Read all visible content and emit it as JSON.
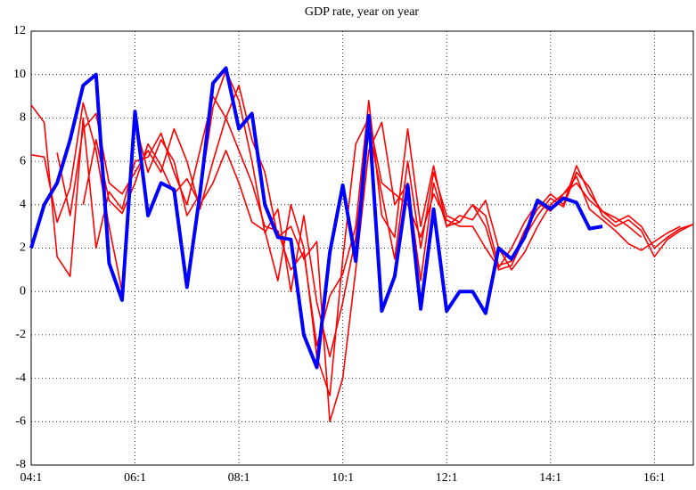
{
  "chart_data": {
    "type": "line",
    "title": "GDP rate, year on year",
    "categories": [
      "04:1",
      null,
      null,
      null,
      null,
      null,
      null,
      null,
      "06:1",
      null,
      null,
      null,
      null,
      null,
      null,
      null,
      "08:1",
      null,
      null,
      null,
      null,
      null,
      null,
      null,
      "10:1",
      null,
      null,
      null,
      null,
      null,
      null,
      null,
      "12:1",
      null,
      null,
      null,
      null,
      null,
      null,
      null,
      "14:1",
      null,
      null,
      null,
      null,
      null,
      null,
      null,
      "16:1",
      null,
      null,
      null
    ],
    "ylim": [
      -8,
      12
    ],
    "yticks": [
      -8,
      -6,
      -4,
      -2,
      0,
      2,
      4,
      6,
      8,
      10,
      12
    ],
    "grid": true,
    "series": [
      {
        "color": "#ff0000",
        "values": [
          8.6,
          7.8,
          1.6,
          0.7,
          8.0,
          2.0,
          4.6,
          3.8,
          6.0,
          6.2,
          7.3,
          5.5,
          4.0,
          6.5,
          9.0,
          8.0,
          6.5,
          5.0,
          3.0,
          2.8,
          1.0,
          1.8,
          -2.5,
          -0.2,
          0.8,
          3.0,
          8.8,
          3.5,
          2.5,
          7.5,
          3.0,
          5.8,
          3.0,
          3.2,
          4.0,
          3.5,
          1.2,
          1.4,
          2.8,
          3.8,
          4.5,
          4.0,
          5.8,
          4.5,
          3.7,
          3.2,
          3.5,
          3.0,
          2.0,
          2.5,
          2.9,
          3.1
        ]
      },
      {
        "color": "#ff0000",
        "values": [
          6.3,
          6.2,
          3.2,
          4.8,
          8.7,
          6.5,
          3.0,
          0.0,
          7.8,
          5.5,
          7.0,
          6.0,
          3.5,
          4.5,
          8.5,
          10.2,
          8.8,
          6.0,
          2.7,
          3.8,
          0.0,
          3.5,
          -0.5,
          -3.0,
          -0.5,
          2.5,
          7.5,
          4.5,
          1.5,
          6.0,
          2.0,
          5.5,
          3.5,
          3.2,
          4.0,
          3.0,
          1.0,
          1.2,
          2.5,
          3.5,
          4.3,
          3.9,
          5.5,
          4.8,
          3.5,
          3.0,
          3.3,
          2.8,
          1.6,
          2.4,
          2.8,
          3.1
        ]
      },
      {
        "color": "#ff0000",
        "values": [
          null,
          null,
          6.4,
          3.5,
          7.5,
          8.2,
          5.0,
          4.5,
          5.5,
          6.5,
          5.5,
          7.5,
          6.0,
          3.8,
          6.0,
          8.0,
          9.5,
          7.0,
          5.5,
          2.5,
          3.0,
          1.5,
          2.3,
          -6.0,
          -4.0,
          1.0,
          6.5,
          7.8,
          4.0,
          5.0,
          0.5,
          5.0,
          3.0,
          3.5,
          3.3,
          4.2,
          2.0,
          1.0,
          1.8,
          3.0,
          4.0,
          4.5,
          5.0,
          4.2,
          3.7,
          3.4,
          3.0,
          2.5,
          null,
          null,
          null,
          null
        ]
      },
      {
        "color": "#ff0000",
        "values": [
          null,
          null,
          null,
          null,
          4.0,
          7.0,
          4.2,
          3.6,
          5.0,
          6.8,
          5.8,
          4.5,
          5.2,
          4.0,
          5.0,
          6.5,
          5.0,
          3.2,
          2.8,
          0.5,
          4.0,
          2.0,
          -3.0,
          -4.8,
          1.5,
          6.8,
          8.0,
          5.0,
          4.5,
          4.0,
          2.5,
          4.5,
          3.3,
          3.0,
          3.0,
          2.0,
          1.1,
          2.0,
          3.2,
          4.1,
          3.7,
          4.5,
          5.3,
          3.8,
          3.3,
          2.8,
          2.2,
          1.9,
          2.3,
          2.7,
          3.0,
          null
        ]
      },
      {
        "color": "#0000ff",
        "values": [
          2.0,
          4.0,
          5.0,
          7.0,
          9.5,
          10.0,
          1.3,
          -0.4,
          8.3,
          3.5,
          5.0,
          4.7,
          0.2,
          4.5,
          9.6,
          10.3,
          7.5,
          8.2,
          4.0,
          2.5,
          2.4,
          -2.0,
          -3.5,
          1.8,
          4.9,
          1.4,
          8.1,
          -0.9,
          0.7,
          4.9,
          -0.8,
          3.8,
          -0.9,
          0.0,
          0.0,
          -1.0,
          2.0,
          1.5,
          2.5,
          4.2,
          3.8,
          4.3,
          4.1,
          2.9,
          3.0,
          null,
          null,
          null,
          null,
          null,
          null,
          null
        ]
      }
    ]
  }
}
